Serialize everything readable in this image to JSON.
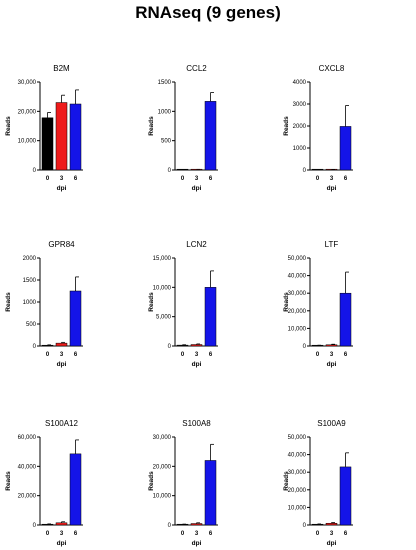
{
  "title": "RNAseq (9 genes)",
  "colors": {
    "day0": "#000000",
    "day3": "#ee1b1b",
    "day6": "#1414e8",
    "axis": "#000000"
  },
  "chart_data": [
    {
      "type": "bar",
      "title": "B2M",
      "xlabel": "dpi",
      "ylabel": "Reads",
      "categories": [
        "0",
        "3",
        "6"
      ],
      "values": [
        17800,
        23000,
        22500
      ],
      "errors": [
        1800,
        2500,
        4800
      ],
      "ylim": [
        0,
        30000
      ],
      "yticks": [
        0,
        10000,
        20000,
        30000
      ],
      "ytick_labels": [
        "0",
        "10,000",
        "20,000",
        "30,000"
      ]
    },
    {
      "type": "bar",
      "title": "CCL2",
      "xlabel": "dpi",
      "ylabel": "Reads",
      "categories": [
        "0",
        "3",
        "6"
      ],
      "values": [
        2,
        8,
        1170
      ],
      "errors": [
        1,
        3,
        150
      ],
      "ylim": [
        0,
        1500
      ],
      "yticks": [
        0,
        500,
        1000,
        1500
      ],
      "ytick_labels": [
        "0",
        "500",
        "1000",
        "1500"
      ]
    },
    {
      "type": "bar",
      "title": "CXCL8",
      "xlabel": "dpi",
      "ylabel": "Reads",
      "categories": [
        "0",
        "3",
        "6"
      ],
      "values": [
        5,
        15,
        1980
      ],
      "errors": [
        3,
        6,
        950
      ],
      "ylim": [
        0,
        4000
      ],
      "yticks": [
        0,
        1000,
        2000,
        3000,
        4000
      ],
      "ytick_labels": [
        "0",
        "1000",
        "2000",
        "3000",
        "4000"
      ]
    },
    {
      "type": "bar",
      "title": "GPR84",
      "xlabel": "dpi",
      "ylabel": "Reads",
      "categories": [
        "0",
        "3",
        "6"
      ],
      "values": [
        18,
        65,
        1250
      ],
      "errors": [
        8,
        18,
        320
      ],
      "ylim": [
        0,
        2000
      ],
      "yticks": [
        0,
        500,
        1000,
        1500,
        2000
      ],
      "ytick_labels": [
        "0",
        "500",
        "1000",
        "1500",
        "2000"
      ]
    },
    {
      "type": "bar",
      "title": "LCN2",
      "xlabel": "dpi",
      "ylabel": "Reads",
      "categories": [
        "0",
        "3",
        "6"
      ],
      "values": [
        150,
        250,
        10000
      ],
      "errors": [
        60,
        100,
        2800
      ],
      "ylim": [
        0,
        15000
      ],
      "yticks": [
        0,
        5000,
        10000,
        15000
      ],
      "ytick_labels": [
        "0",
        "5,000",
        "10,000",
        "15,000"
      ]
    },
    {
      "type": "bar",
      "title": "LTF",
      "xlabel": "dpi",
      "ylabel": "Reads",
      "categories": [
        "0",
        "3",
        "6"
      ],
      "values": [
        300,
        700,
        30000
      ],
      "errors": [
        150,
        300,
        12000
      ],
      "ylim": [
        0,
        50000
      ],
      "yticks": [
        0,
        10000,
        20000,
        30000,
        40000,
        50000
      ],
      "ytick_labels": [
        "0",
        "10,000",
        "20,000",
        "30,000",
        "40,000",
        "50,000"
      ]
    },
    {
      "type": "bar",
      "title": "S100A12",
      "xlabel": "dpi",
      "ylabel": "Reads",
      "categories": [
        "0",
        "3",
        "6"
      ],
      "values": [
        500,
        1500,
        48500
      ],
      "errors": [
        250,
        700,
        9500
      ],
      "ylim": [
        0,
        60000
      ],
      "yticks": [
        0,
        20000,
        40000,
        60000
      ],
      "ytick_labels": [
        "0",
        "20,000",
        "40,000",
        "60,000"
      ]
    },
    {
      "type": "bar",
      "title": "S100A8",
      "xlabel": "dpi",
      "ylabel": "Reads",
      "categories": [
        "0",
        "3",
        "6"
      ],
      "values": [
        200,
        500,
        22000
      ],
      "errors": [
        100,
        250,
        5500
      ],
      "ylim": [
        0,
        30000
      ],
      "yticks": [
        0,
        10000,
        20000,
        30000
      ],
      "ytick_labels": [
        "0",
        "10,000",
        "20,000",
        "30,000"
      ]
    },
    {
      "type": "bar",
      "title": "S100A9",
      "xlabel": "dpi",
      "ylabel": "Reads",
      "categories": [
        "0",
        "3",
        "6"
      ],
      "values": [
        400,
        1000,
        33000
      ],
      "errors": [
        200,
        400,
        8000
      ],
      "ylim": [
        0,
        50000
      ],
      "yticks": [
        0,
        10000,
        20000,
        30000,
        40000,
        50000
      ],
      "ytick_labels": [
        "0",
        "10,000",
        "20,000",
        "30,000",
        "40,000",
        "50,000"
      ]
    }
  ]
}
